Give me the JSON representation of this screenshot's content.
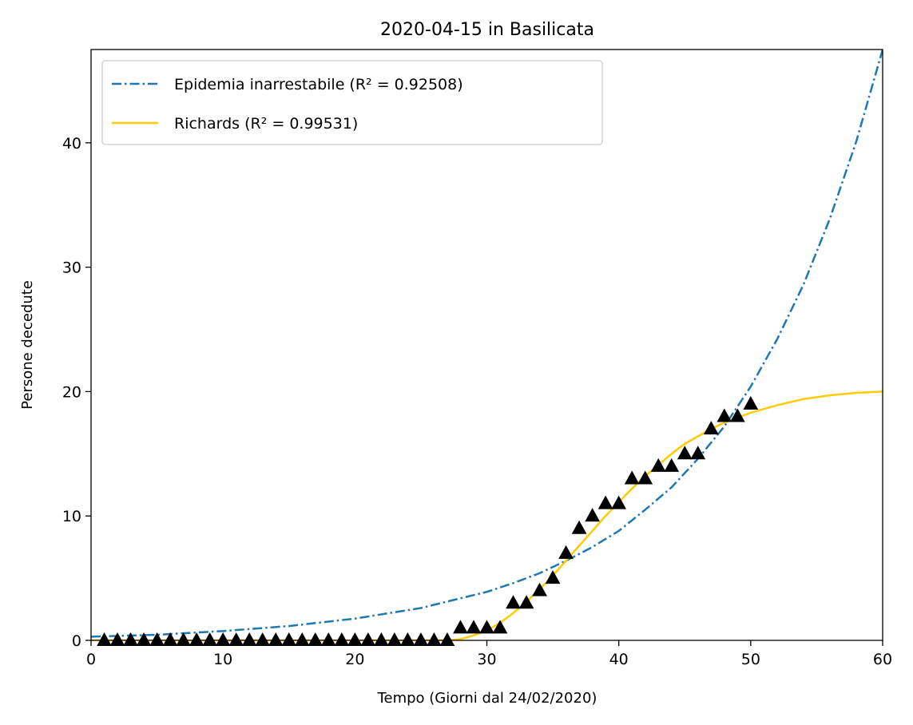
{
  "chart_data": {
    "type": "line",
    "title": "2020-04-15 in Basilicata",
    "xlabel": "Tempo (Giorni dal 24/02/2020)",
    "ylabel": "Persone decedute",
    "xlim": [
      0,
      60
    ],
    "ylim": [
      0,
      47.5
    ],
    "xticks": [
      0,
      10,
      20,
      30,
      40,
      50,
      60
    ],
    "yticks": [
      0,
      10,
      20,
      30,
      40
    ],
    "grid": false,
    "legend_position": "upper-left",
    "series": [
      {
        "name": "Epidemia inarrestabile",
        "r2_label": "R² = 0.92508",
        "kind": "line",
        "style": "dashdot",
        "color": "#1f77b4",
        "x": [
          0,
          5,
          10,
          15,
          20,
          25,
          30,
          32,
          34,
          36,
          38,
          40,
          42,
          44,
          46,
          48,
          50,
          52,
          54,
          56,
          58,
          60
        ],
        "y": [
          0.3,
          0.45,
          0.75,
          1.15,
          1.75,
          2.6,
          3.9,
          4.6,
          5.4,
          6.4,
          7.5,
          8.8,
          10.5,
          12.3,
          14.6,
          17.2,
          20.4,
          24.2,
          28.6,
          33.9,
          40.1,
          47.5
        ]
      },
      {
        "name": "Richards",
        "r2_label": "R² = 0.99531",
        "kind": "line",
        "style": "solid",
        "color": "#ffcc00",
        "x": [
          0,
          27,
          28,
          29,
          30,
          31,
          32,
          33,
          34,
          35,
          36,
          37,
          38,
          39,
          40,
          41,
          42,
          43,
          44,
          45,
          46,
          47,
          48,
          50,
          52,
          54,
          56,
          58,
          60
        ],
        "y": [
          0,
          0,
          0.1,
          0.4,
          0.8,
          1.4,
          2.2,
          3.1,
          4.1,
          5.2,
          6.4,
          7.6,
          8.8,
          10.0,
          11.1,
          12.2,
          13.2,
          14.1,
          15.0,
          15.8,
          16.4,
          17.0,
          17.5,
          18.3,
          18.9,
          19.4,
          19.7,
          19.9,
          20.0
        ]
      },
      {
        "name": "",
        "kind": "markers",
        "marker": "triangle",
        "color": "#000000",
        "x": [
          1,
          2,
          3,
          4,
          5,
          6,
          7,
          8,
          9,
          10,
          11,
          12,
          13,
          14,
          15,
          16,
          17,
          18,
          19,
          20,
          21,
          22,
          23,
          24,
          25,
          26,
          27,
          28,
          29,
          30,
          31,
          32,
          33,
          34,
          35,
          36,
          37,
          38,
          39,
          40,
          41,
          42,
          43,
          44,
          45,
          46,
          47,
          48,
          49,
          50
        ],
        "y": [
          0,
          0,
          0,
          0,
          0,
          0,
          0,
          0,
          0,
          0,
          0,
          0,
          0,
          0,
          0,
          0,
          0,
          0,
          0,
          0,
          0,
          0,
          0,
          0,
          0,
          0,
          0,
          1,
          1,
          1,
          1,
          3,
          3,
          4,
          5,
          7,
          9,
          10,
          11,
          11,
          13,
          13,
          14,
          14,
          15,
          15,
          17,
          18,
          18,
          19
        ]
      }
    ]
  }
}
